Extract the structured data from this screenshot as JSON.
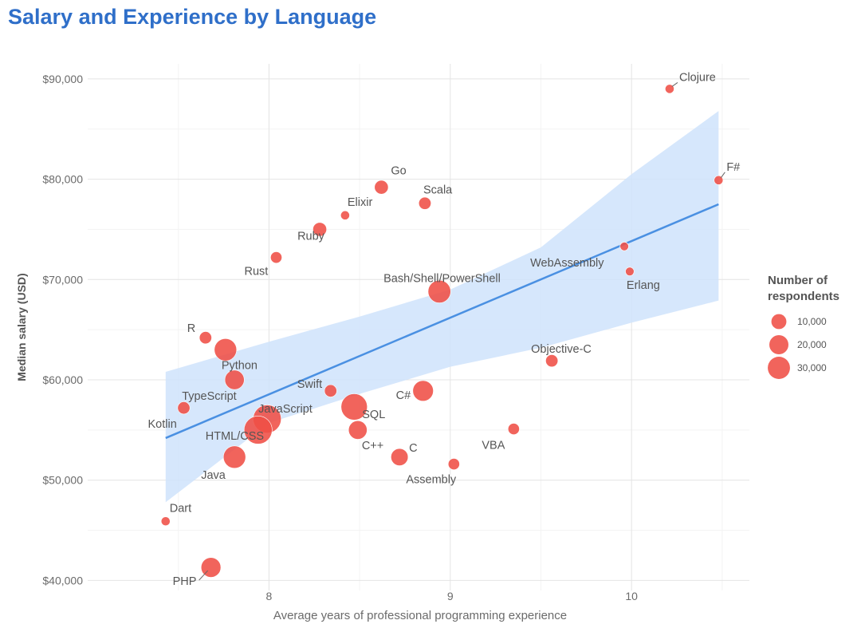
{
  "chart_data": {
    "type": "scatter",
    "title": "Salary and Experience by Language",
    "xlabel": "Average years of professional programming experience",
    "ylabel": "Median salary (USD)",
    "xlim": [
      7.0,
      10.65
    ],
    "ylim": [
      39000,
      91500
    ],
    "x_ticks": [
      8,
      9,
      10
    ],
    "x_tick_labels": [
      "8",
      "9",
      "10"
    ],
    "y_ticks": [
      40000,
      50000,
      60000,
      70000,
      80000,
      90000
    ],
    "y_tick_labels": [
      "$40,000",
      "$50,000",
      "$60,000",
      "$70,000",
      "$80,000",
      "$90,000"
    ],
    "grid": true,
    "point_color": "#ef4f46",
    "trend_color": "#4a90e2",
    "band_color": "#cfe3fb",
    "trend_line": {
      "x": [
        7.43,
        10.48
      ],
      "y": [
        54200,
        77500
      ]
    },
    "confidence_band": {
      "x": [
        7.43,
        8.0,
        8.5,
        9.0,
        9.5,
        10.0,
        10.48
      ],
      "upper": [
        60800,
        63800,
        66300,
        69000,
        73200,
        80500,
        86800
      ],
      "lower": [
        47800,
        55700,
        58600,
        61300,
        63200,
        65700,
        67900
      ]
    },
    "legend": {
      "title_line1": "Number of",
      "title_line2": "respondents",
      "position": "right",
      "entries": [
        {
          "label": "10,000",
          "value": 10000
        },
        {
          "label": "20,000",
          "value": 20000
        },
        {
          "label": "30,000",
          "value": 30000
        }
      ]
    },
    "points": [
      {
        "name": "Clojure",
        "x": 10.21,
        "y": 89000,
        "respondents": 1000
      },
      {
        "name": "F#",
        "x": 10.48,
        "y": 79900,
        "respondents": 1000
      },
      {
        "name": "Go",
        "x": 8.62,
        "y": 79200,
        "respondents": 6000
      },
      {
        "name": "Scala",
        "x": 8.86,
        "y": 77600,
        "respondents": 4000
      },
      {
        "name": "Elixir",
        "x": 8.42,
        "y": 76400,
        "respondents": 1000
      },
      {
        "name": "Ruby",
        "x": 8.28,
        "y": 75000,
        "respondents": 6000
      },
      {
        "name": "WebAssembly",
        "x": 9.96,
        "y": 73300,
        "respondents": 800
      },
      {
        "name": "Rust",
        "x": 8.04,
        "y": 72200,
        "respondents": 3000
      },
      {
        "name": "Erlang",
        "x": 9.99,
        "y": 70800,
        "respondents": 800
      },
      {
        "name": "Bash/Shell/PowerShell",
        "x": 8.94,
        "y": 68800,
        "respondents": 26000
      },
      {
        "name": "R",
        "x": 7.65,
        "y": 64200,
        "respondents": 4000
      },
      {
        "name": "Python",
        "x": 7.76,
        "y": 63000,
        "respondents": 25000
      },
      {
        "name": "Objective-C",
        "x": 9.56,
        "y": 61900,
        "respondents": 4000
      },
      {
        "name": "Swift",
        "x": 8.34,
        "y": 58900,
        "respondents": 4000
      },
      {
        "name": "C#",
        "x": 8.85,
        "y": 58900,
        "respondents": 20000
      },
      {
        "name": "TypeScript",
        "x": 7.81,
        "y": 60000,
        "respondents": 17000
      },
      {
        "name": "Kotlin",
        "x": 7.53,
        "y": 57200,
        "respondents": 4000
      },
      {
        "name": "SQL",
        "x": 8.47,
        "y": 57300,
        "respondents": 38000
      },
      {
        "name": "JavaScript",
        "x": 7.99,
        "y": 56100,
        "respondents": 45000
      },
      {
        "name": "C++",
        "x": 8.49,
        "y": 55000,
        "respondents": 15000
      },
      {
        "name": "HTML/CSS",
        "x": 7.94,
        "y": 55000,
        "respondents": 45000
      },
      {
        "name": "VBA",
        "x": 9.35,
        "y": 55100,
        "respondents": 3000
      },
      {
        "name": "Java",
        "x": 7.81,
        "y": 52300,
        "respondents": 25000
      },
      {
        "name": "C",
        "x": 8.72,
        "y": 52300,
        "respondents": 12000
      },
      {
        "name": "Assembly",
        "x": 9.02,
        "y": 51600,
        "respondents": 3000
      },
      {
        "name": "Dart",
        "x": 7.43,
        "y": 45900,
        "respondents": 1000
      },
      {
        "name": "PHP",
        "x": 7.68,
        "y": 41300,
        "respondents": 18000
      }
    ]
  }
}
